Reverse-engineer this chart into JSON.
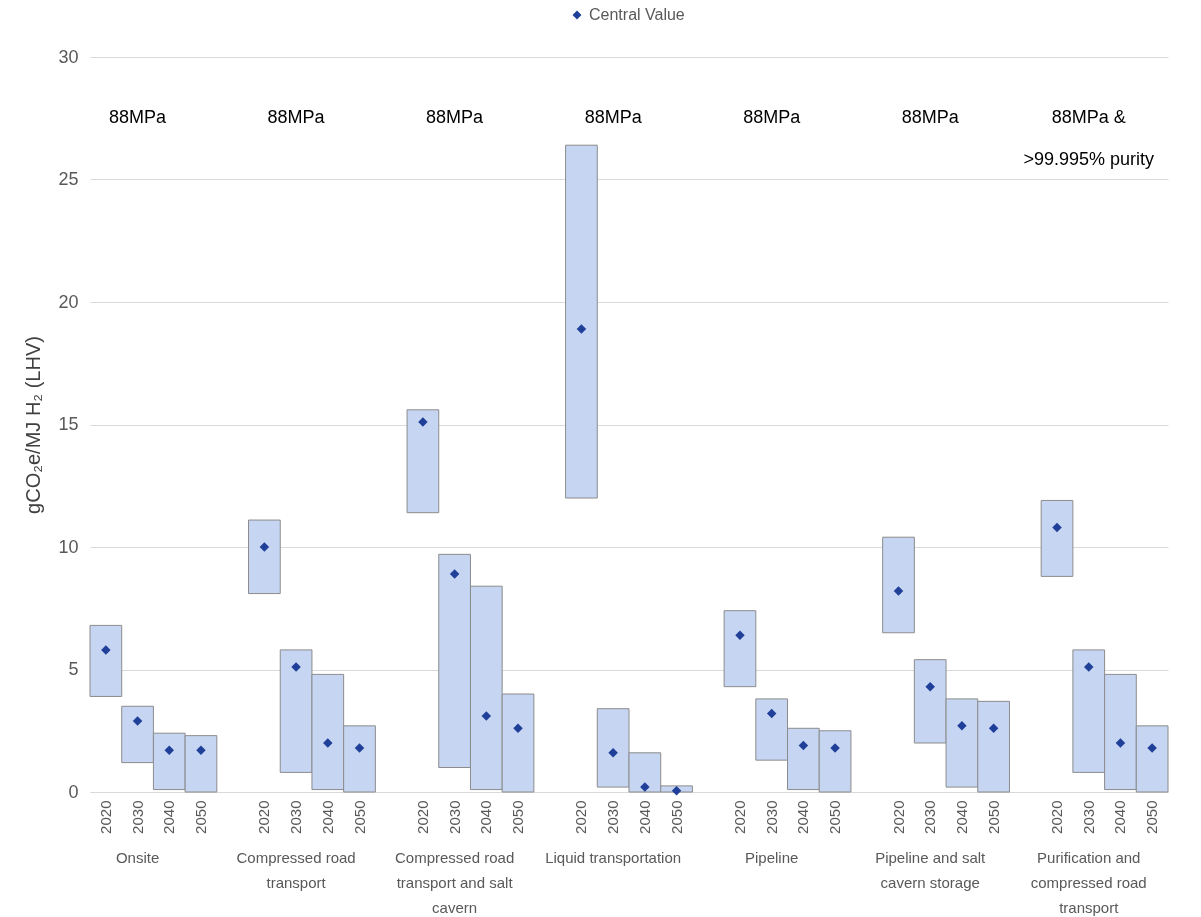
{
  "chart_data": {
    "type": "bar",
    "ylabel": "gCO₂e/MJ H₂ (LHV)",
    "categories": [
      "2020",
      "2030",
      "2040",
      "2050",
      null,
      "2020",
      "2030",
      "2040",
      "2050",
      null,
      "2020",
      "2030",
      "2040",
      "2050",
      null,
      "2020",
      "2030",
      "2040",
      "2050",
      null,
      "2020",
      "2030",
      "2040",
      "2050",
      null,
      "2020",
      "2030",
      "2040",
      "2050",
      null,
      "2020",
      "2030",
      "2040",
      "2050"
    ],
    "series": [
      {
        "type": "bar",
        "color": "#c5d5f2",
        "base": [
          3.9,
          1.2,
          0.1,
          0,
          null,
          8.1,
          0.8,
          0.1,
          0,
          null,
          11.4,
          1.0,
          0.1,
          0,
          null,
          12.0,
          0.2,
          0,
          0,
          null,
          4.3,
          1.3,
          0.1,
          0,
          null,
          6.5,
          2.0,
          0.2,
          0,
          null,
          8.8,
          0.8,
          0.1,
          0
        ],
        "values": [
          2.9,
          2.3,
          2.3,
          2.3,
          null,
          3.0,
          5.0,
          4.7,
          2.7,
          null,
          4.2,
          8.7,
          8.3,
          4.0,
          null,
          14.4,
          3.2,
          1.6,
          0.25,
          null,
          3.1,
          2.5,
          2.5,
          2.5,
          null,
          3.9,
          3.4,
          3.6,
          3.7,
          null,
          3.1,
          5.0,
          4.7,
          2.7
        ]
      },
      {
        "type": "scatter",
        "name": "Central Value",
        "color": "#1f3f99",
        "values": [
          5.8,
          2.9,
          1.7,
          1.7,
          null,
          10.0,
          5.1,
          2.0,
          1.8,
          null,
          15.1,
          8.9,
          3.1,
          2.6,
          null,
          18.9,
          1.6,
          0.2,
          0.05,
          null,
          6.4,
          3.2,
          1.9,
          1.8,
          null,
          8.2,
          4.3,
          2.7,
          2.6,
          null,
          10.8,
          5.1,
          2.0,
          1.8
        ]
      }
    ],
    "ylim": [
      0,
      30
    ],
    "yticks": [
      0,
      5,
      10,
      15,
      20,
      25,
      30
    ],
    "grid": "y",
    "legend": "top",
    "marker": "diamond",
    "annotations": [
      "88MPa",
      "88MPa",
      "88MPa",
      "88MPa",
      "88MPa",
      "88MPa",
      "88MPa & >99.995% purity",
      "Onsite",
      "Compressed road transport",
      "Compressed road transport and salt cavern",
      "Liquid transportation",
      "Pipeline",
      "Pipeline and salt cavern storage",
      "Purification and compressed road transport"
    ]
  }
}
